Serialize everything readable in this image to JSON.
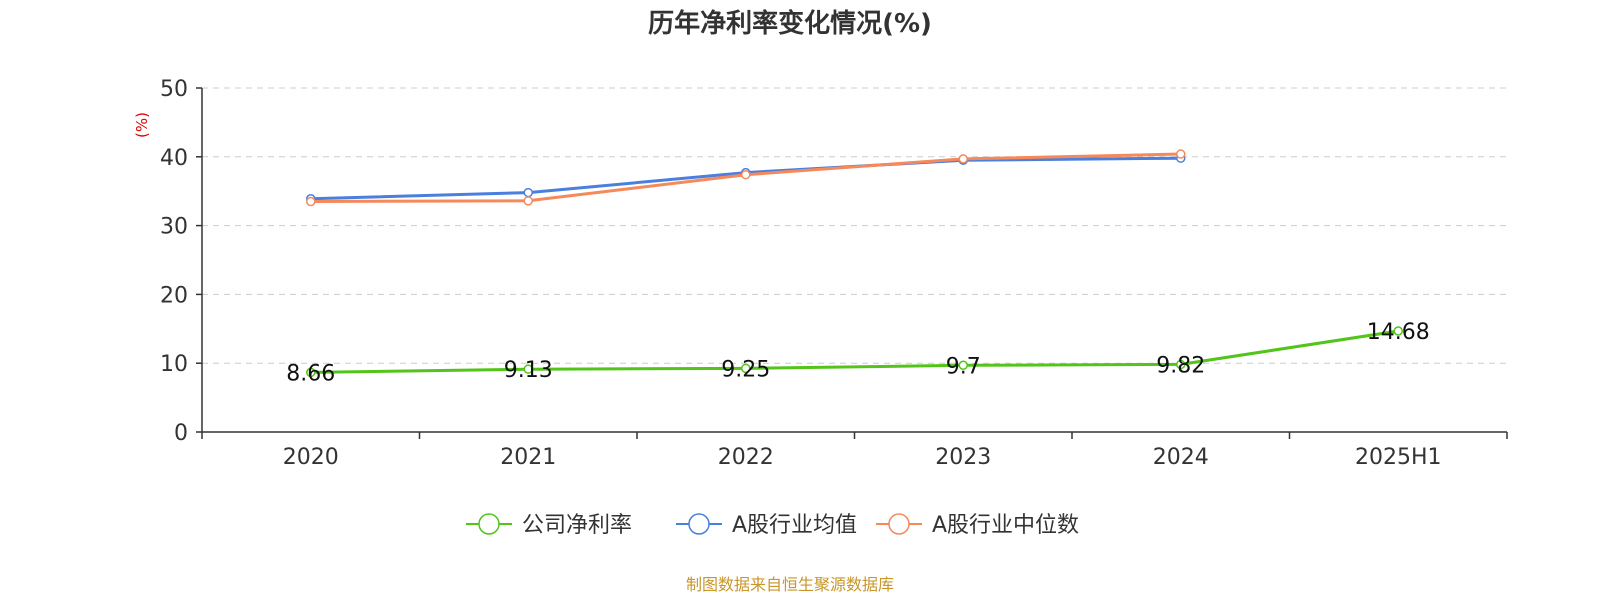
{
  "chart_data": {
    "type": "line",
    "title": "历年净利率变化情况(%)",
    "xlabel": "",
    "ylabel": "(%)",
    "categories": [
      "2020",
      "2021",
      "2022",
      "2023",
      "2024",
      "2025H1"
    ],
    "ylim": [
      0,
      50
    ],
    "yticks": [
      0,
      10,
      20,
      30,
      40,
      50
    ],
    "grid": true,
    "legend_position": "bottom",
    "series": [
      {
        "name": "公司净利率",
        "color": "#52c41a",
        "values": [
          8.66,
          9.13,
          9.25,
          9.7,
          9.82,
          14.68
        ],
        "data_labels": [
          "8.66",
          "9.13",
          "9.25",
          "9.7",
          "9.82",
          "14.68"
        ]
      },
      {
        "name": "A股行业均值",
        "color": "#4a7fde",
        "values": [
          33.9,
          34.8,
          37.7,
          39.5,
          39.8,
          null
        ]
      },
      {
        "name": "A股行业中位数",
        "color": "#f5895a",
        "values": [
          33.5,
          33.6,
          37.4,
          39.7,
          40.4,
          null
        ]
      }
    ],
    "source": "制图数据来自恒生聚源数据库"
  }
}
